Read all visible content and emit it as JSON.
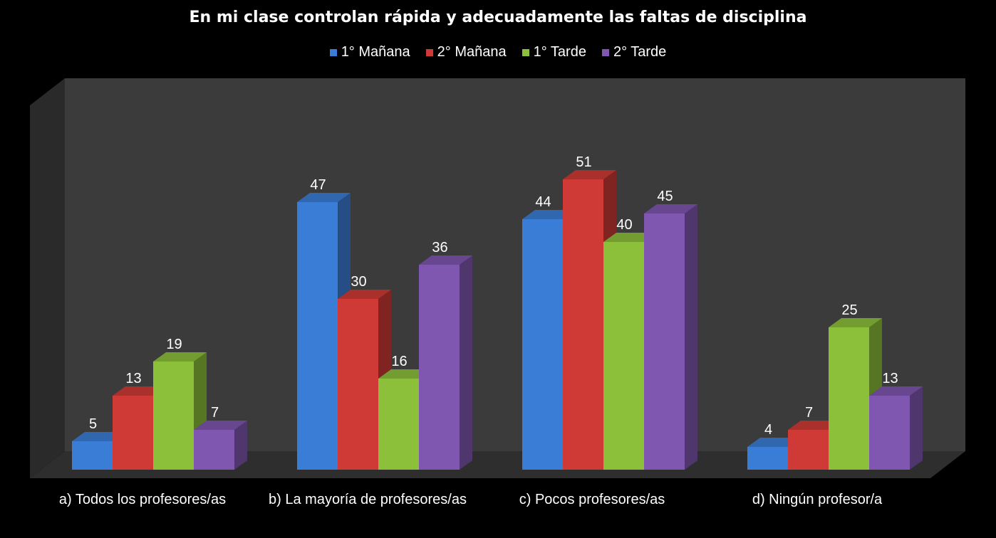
{
  "chart_data": {
    "type": "bar",
    "title": "En mi clase controlan rápida y adecuadamente las faltas de disciplina",
    "categories": [
      "a) Todos los profesores/as",
      "b) La mayoría de profesores/as",
      "c) Pocos profesores/as",
      "d) Ningún profesor/a"
    ],
    "series": [
      {
        "name": "1° Mañana",
        "values": [
          5,
          47,
          44,
          4
        ],
        "color": "#3a7dd6"
      },
      {
        "name": "2° Mañana",
        "values": [
          13,
          30,
          51,
          7
        ],
        "color": "#cf3a36"
      },
      {
        "name": "1° Tarde",
        "values": [
          19,
          16,
          40,
          25
        ],
        "color": "#8cbf3a"
      },
      {
        "name": "2° Tarde",
        "values": [
          7,
          36,
          45,
          13
        ],
        "color": "#7f57b0"
      }
    ],
    "ylim": [
      0,
      55
    ],
    "legend_position": "top",
    "grid": false,
    "style": "3d-clustered-column"
  }
}
